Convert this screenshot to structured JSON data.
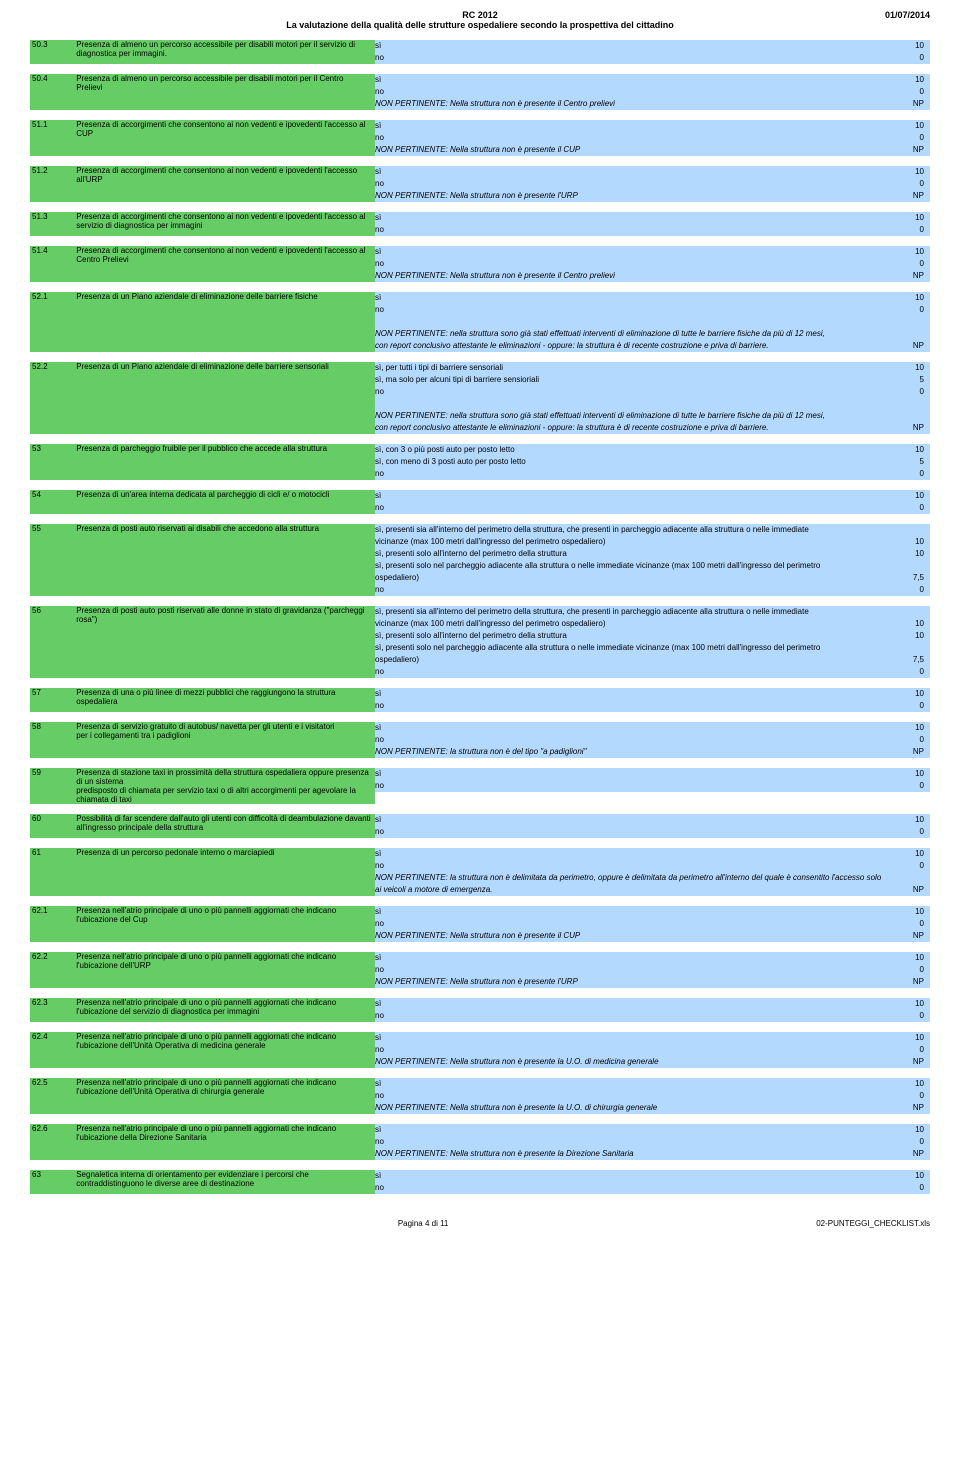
{
  "header": {
    "title1": "RC 2012",
    "title2": "La valutazione della qualità delle strutture ospedaliere secondo la prospettiva del cittadino",
    "date": "01/07/2014"
  },
  "footer": {
    "page": "Pagina 4 di 11",
    "file": "02-PUNTEGGI_CHECKLIST.xls"
  },
  "blocks": [
    {
      "id": "50.3",
      "q": "Presenza di almeno un percorso accessibile per disabili motori per il servizio di diagnostica per immagini.",
      "rows": [
        {
          "opt": "sì",
          "val": "10",
          "cls": "blue"
        },
        {
          "opt": "no",
          "val": "0",
          "cls": "blue"
        }
      ]
    },
    {
      "id": "50.4",
      "q": "Presenza di almeno un percorso accessibile per disabili motori per il Centro Prelievi",
      "rows": [
        {
          "opt": "sì",
          "val": "10",
          "cls": "blue"
        },
        {
          "opt": "no",
          "val": "0",
          "cls": "blue"
        },
        {
          "opt": "NON PERTINENTE: Nella struttura non è presente il Centro prelievi",
          "val": "NP",
          "cls": "blue",
          "italic": true
        }
      ]
    },
    {
      "id": "51.1",
      "q": "Presenza di accorgimenti che consentono ai non vedenti e ipovedenti l'accesso al CUP",
      "rows": [
        {
          "opt": "sì",
          "val": "10",
          "cls": "blue"
        },
        {
          "opt": "no",
          "val": "0",
          "cls": "blue"
        },
        {
          "opt": "NON PERTINENTE: Nella struttura non è presente il CUP",
          "val": "NP",
          "cls": "blue",
          "italic": true
        }
      ]
    },
    {
      "id": "51.2",
      "q": "Presenza di accorgimenti che consentono ai non vedenti e ipovedenti l'accesso all'URP",
      "rows": [
        {
          "opt": "sì",
          "val": "10",
          "cls": "blue"
        },
        {
          "opt": "no",
          "val": "0",
          "cls": "blue"
        },
        {
          "opt": "NON PERTINENTE: Nella struttura non è presente l'URP",
          "val": "NP",
          "cls": "blue",
          "italic": true
        }
      ]
    },
    {
      "id": "51.3",
      "q": "Presenza di accorgimenti che consentono ai non vedenti e ipovedenti l'accesso al servizio di diagnostica per immagini",
      "rows": [
        {
          "opt": "sì",
          "val": "10",
          "cls": "blue"
        },
        {
          "opt": "no",
          "val": "0",
          "cls": "blue"
        }
      ]
    },
    {
      "id": "51.4",
      "q": "Presenza di accorgimenti che consentono ai non vedenti e ipovedenti l'accesso al Centro Prelievi",
      "rows": [
        {
          "opt": "sì",
          "val": "10",
          "cls": "blue"
        },
        {
          "opt": "no",
          "val": "0",
          "cls": "blue"
        },
        {
          "opt": "NON PERTINENTE: Nella struttura non è presente il Centro prelievi",
          "val": "NP",
          "cls": "blue",
          "italic": true
        }
      ]
    },
    {
      "id": "52.1",
      "q": "Presenza di un Piano aziendale di eliminazione delle barriere fisiche",
      "rows": [
        {
          "opt": "sì",
          "val": "10",
          "cls": "blue"
        },
        {
          "opt": "no",
          "val": "0",
          "cls": "blue"
        },
        {
          "opt": "",
          "val": "",
          "cls": "blue"
        },
        {
          "opt": "NON PERTINENTE: nella struttura sono già stati effettuati interventi di eliminazione di tutte le barriere fisiche da più di 12 mesi,",
          "val": "",
          "cls": "blue",
          "italic": true
        },
        {
          "opt": "con report conclusivo attestante le eliminazioni - oppure: la struttura è di recente costruzione e priva di barriere.",
          "val": "NP",
          "cls": "blue",
          "italic": true
        }
      ]
    },
    {
      "id": "52.2",
      "q": "Presenza di un Piano aziendale di eliminazione delle barriere sensoriali",
      "rows": [
        {
          "opt": "sì, per tutti i tipi di barriere sensoriali",
          "val": "10",
          "cls": "blue"
        },
        {
          "opt": "sì, ma solo per alcuni tipi di barriere sensioriali",
          "val": "5",
          "cls": "blue"
        },
        {
          "opt": "no",
          "val": "0",
          "cls": "blue"
        },
        {
          "opt": "",
          "val": "",
          "cls": "blue"
        },
        {
          "opt": "NON PERTINENTE: nella struttura sono già stati effettuati interventi di eliminazione di tutte le barriere fisiche da più di 12 mesi,",
          "val": "",
          "cls": "blue",
          "italic": true
        },
        {
          "opt": "con report conclusivo attestante le eliminazioni - oppure: la struttura è di recente costruzione e priva di barriere.",
          "val": "NP",
          "cls": "blue",
          "italic": true
        }
      ]
    },
    {
      "id": "53",
      "q": "Presenza di parcheggio fruibile per il pubblico che accede alla struttura",
      "rows": [
        {
          "opt": "sì, con 3 o più posti auto per posto letto",
          "val": "10",
          "cls": "blue"
        },
        {
          "opt": "sì, con meno di 3 posti auto per posto letto",
          "val": "5",
          "cls": "blue"
        },
        {
          "opt": "no",
          "val": "0",
          "cls": "blue"
        }
      ]
    },
    {
      "id": "54",
      "q": "Presenza di un'area interna dedicata al parcheggio di cicli e/ o motocicli",
      "rows": [
        {
          "opt": "sì",
          "val": "10",
          "cls": "blue"
        },
        {
          "opt": "no",
          "val": "0",
          "cls": "blue"
        }
      ]
    },
    {
      "id": "55",
      "q": "Presenza di posti auto riservati ai disabili che accedono alla struttura",
      "rows": [
        {
          "opt": "sì, presenti sia all'interno del perimetro della struttura, che presenti in parcheggio adiacente alla struttura o nelle immediate",
          "val": "",
          "cls": "blue"
        },
        {
          "opt": "vicinanze  (max 100 metri dall'ingresso del perimetro ospedaliero)",
          "val": "10",
          "cls": "blue"
        },
        {
          "opt": "sì, presenti solo all'interno del perimetro della struttura",
          "val": "10",
          "cls": "blue"
        },
        {
          "opt": "sì, presenti solo nel parcheggio adiacente alla struttura o nelle immediate vicinanze  (max 100 metri dall'ingresso del perimetro",
          "val": "",
          "cls": "blue"
        },
        {
          "opt": "ospedaliero)",
          "val": "7,5",
          "cls": "blue"
        },
        {
          "opt": "no",
          "val": "0",
          "cls": "blue"
        }
      ]
    },
    {
      "id": "56",
      "q": "Presenza di posti auto posti riservati alle donne in stato di gravidanza (\"parcheggi rosa\")",
      "rows": [
        {
          "opt": "sì, presenti sia all'interno del perimetro della struttura, che presenti in parcheggio adiacente alla struttura o nelle immediate",
          "val": "",
          "cls": "blue"
        },
        {
          "opt": "vicinanze  (max 100 metri dall'ingresso del perimetro ospedaliero)",
          "val": "10",
          "cls": "blue"
        },
        {
          "opt": "sì, presenti solo all'interno del perimetro della struttura",
          "val": "10",
          "cls": "blue"
        },
        {
          "opt": "sì, presenti solo nel parcheggio adiacente alla struttura o nelle immediate vicinanze  (max 100 metri dall'ingresso del perimetro",
          "val": "",
          "cls": "blue"
        },
        {
          "opt": "ospedaliero)",
          "val": "7,5",
          "cls": "blue"
        },
        {
          "opt": "no",
          "val": "0",
          "cls": "blue"
        }
      ]
    },
    {
      "id": "57",
      "q": "Presenza di una o più linee di mezzi pubblici che raggiungono la struttura ospedaliera",
      "rows": [
        {
          "opt": "sì",
          "val": "10",
          "cls": "blue"
        },
        {
          "opt": "no",
          "val": "0",
          "cls": "blue"
        }
      ]
    },
    {
      "id": "58",
      "q": "Presenza di servizio gratuito di autobus/ navetta per gli utenti e i visitatori\nper i collegamenti tra i padiglioni",
      "rows": [
        {
          "opt": "sì",
          "val": "10",
          "cls": "blue"
        },
        {
          "opt": "no",
          "val": "0",
          "cls": "blue"
        },
        {
          "opt": "NON PERTINENTE: la struttura non è del tipo \"a padiglioni\"",
          "val": "NP",
          "cls": "blue",
          "italic": true
        }
      ]
    },
    {
      "id": "59",
      "q": "Presenza di stazione taxi in prossimità della struttura ospedaliera oppure presenza di un sistema\npredisposto di chiamata per servizio taxi o di altri accorgimenti per agevolare la chiamata di taxi",
      "rows": [
        {
          "opt": "sì",
          "val": "10",
          "cls": "blue"
        },
        {
          "opt": "no",
          "val": "0",
          "cls": "blue"
        }
      ]
    },
    {
      "id": "60",
      "q": "Possibilità di far scendere dall'auto gli utenti con difficoltà di deambulazione davanti all'ingresso principale della struttura",
      "rows": [
        {
          "opt": "sì",
          "val": "10",
          "cls": "blue"
        },
        {
          "opt": "no",
          "val": "0",
          "cls": "blue"
        }
      ]
    },
    {
      "id": "61",
      "q": "Presenza di un percorso pedonale interno o marciapiedi",
      "rows": [
        {
          "opt": "sì",
          "val": "10",
          "cls": "blue"
        },
        {
          "opt": "no",
          "val": "0",
          "cls": "blue"
        },
        {
          "opt": "NON PERTINENTE: la struttura non è delimitata da perimetro, oppure è delimitata da perimetro all'interno del quale è consentito l'accesso solo",
          "val": "",
          "cls": "blue",
          "italic": true
        },
        {
          "opt": "ai veicoli a motore di emergenza.",
          "val": "NP",
          "cls": "blue",
          "italic": true
        }
      ]
    },
    {
      "id": "62.1",
      "q": "Presenza nell'atrio principale di uno o più pannelli aggiornati che indicano l'ubicazione del Cup",
      "rows": [
        {
          "opt": "sì",
          "val": "10",
          "cls": "blue"
        },
        {
          "opt": "no",
          "val": "0",
          "cls": "blue"
        },
        {
          "opt": "NON PERTINENTE: Nella struttura non è presente il CUP",
          "val": "NP",
          "cls": "blue",
          "italic": true
        }
      ]
    },
    {
      "id": "62.2",
      "q": "Presenza nell'atrio principale di uno o più pannelli aggiornati che indicano l'ubicazione dell'URP",
      "rows": [
        {
          "opt": "sì",
          "val": "10",
          "cls": "blue"
        },
        {
          "opt": "no",
          "val": "0",
          "cls": "blue"
        },
        {
          "opt": "NON PERTINENTE: Nella struttura non è presente l'URP",
          "val": "NP",
          "cls": "blue",
          "italic": true
        }
      ]
    },
    {
      "id": "62.3",
      "q": "Presenza nell'atrio principale di uno o più pannelli aggiornati che indicano l'ubicazione del servizio di diagnostica per immagini",
      "rows": [
        {
          "opt": "sì",
          "val": "10",
          "cls": "blue"
        },
        {
          "opt": "no",
          "val": "0",
          "cls": "blue"
        }
      ]
    },
    {
      "id": "62.4",
      "q": "Presenza nell'atrio principale di uno o più pannelli aggiornati che indicano l'ubicazione dell'Unità Operativa di medicina generale",
      "rows": [
        {
          "opt": "sì",
          "val": "10",
          "cls": "blue"
        },
        {
          "opt": "no",
          "val": "0",
          "cls": "blue"
        },
        {
          "opt": "NON PERTINENTE: Nella struttura non è presente la U.O. di medicina generale",
          "val": "NP",
          "cls": "blue",
          "italic": true
        }
      ]
    },
    {
      "id": "62.5",
      "q": "Presenza nell'atrio principale di uno o più pannelli aggiornati che indicano l'ubicazione dell'Unità Operativa di chirurgia generale",
      "rows": [
        {
          "opt": "sì",
          "val": "10",
          "cls": "blue"
        },
        {
          "opt": "no",
          "val": "0",
          "cls": "blue"
        },
        {
          "opt": "NON PERTINENTE: Nella struttura non è presente la U.O. di chirurgia generale",
          "val": "NP",
          "cls": "blue",
          "italic": true
        }
      ]
    },
    {
      "id": "62.6",
      "q": "Presenza nell'atrio principale di uno o più pannelli aggiornati che indicano l'ubicazione della Direzione Sanitaria",
      "rows": [
        {
          "opt": "sì",
          "val": "10",
          "cls": "blue"
        },
        {
          "opt": "no",
          "val": "0",
          "cls": "blue"
        },
        {
          "opt": "NON PERTINENTE: Nella struttura non è presente la Direzione Sanitaria",
          "val": "NP",
          "cls": "blue",
          "italic": true
        }
      ]
    },
    {
      "id": "63",
      "q": "Segnaletica interna di orientamento per evidenziare i percorsi che contraddistinguono le diverse aree di destinazione",
      "rows": [
        {
          "opt": "sì",
          "val": "10",
          "cls": "blue"
        },
        {
          "opt": "no",
          "val": "0",
          "cls": "blue"
        }
      ]
    }
  ]
}
